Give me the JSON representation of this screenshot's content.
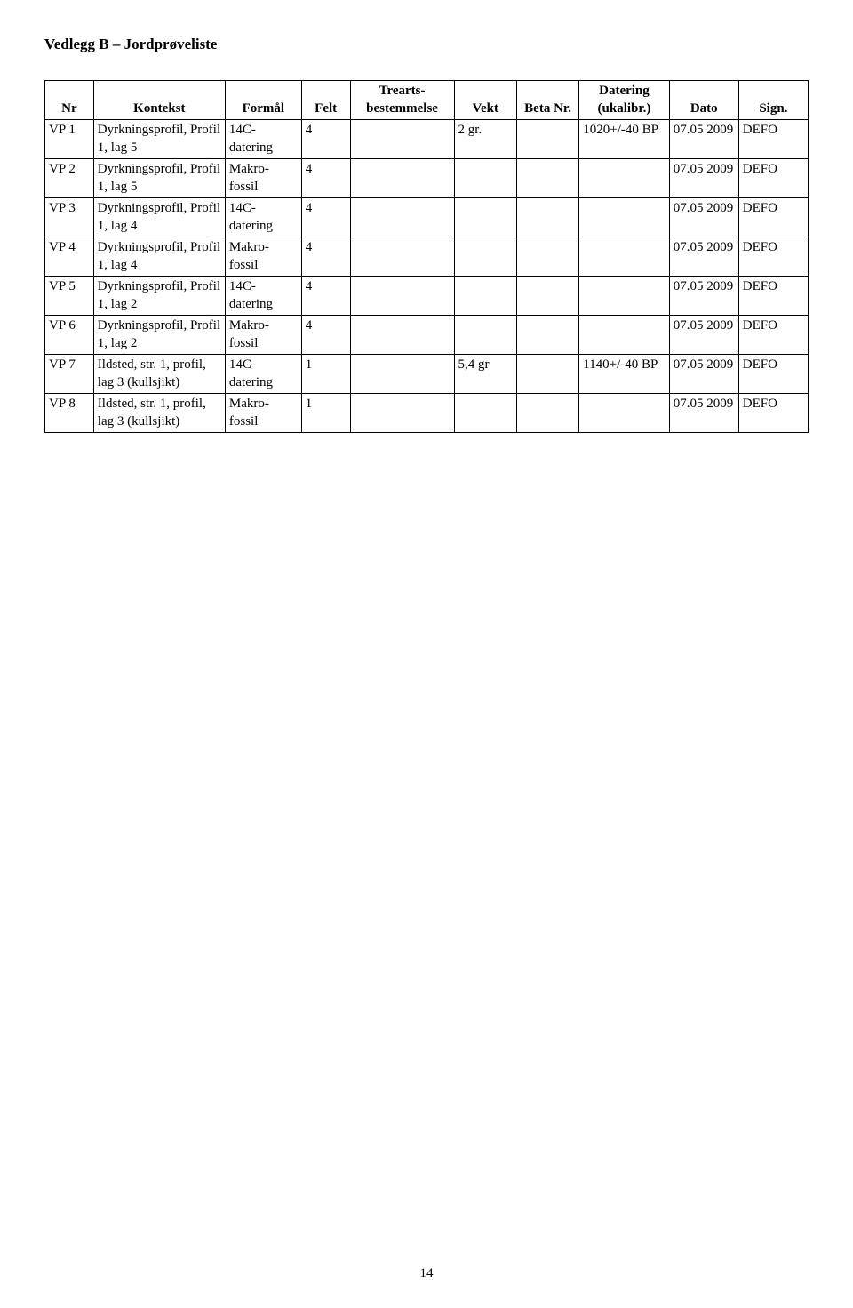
{
  "title": "Vedlegg B – Jordprøveliste",
  "page_number": "14",
  "headers": {
    "nr": "Nr",
    "kontekst": "Kontekst",
    "formal": "Formål",
    "felt": "Felt",
    "trearts": "Trearts-\nbestemmelse",
    "vekt": "Vekt",
    "beta": "Beta\nNr.",
    "datering": "Datering\n(ukalibr.)",
    "dato": "Dato",
    "sign": "Sign."
  },
  "rows": [
    {
      "nr": "VP 1",
      "kontekst": "Dyrkningsprofil, Profil 1, lag 5",
      "formal": "14C-datering",
      "felt": "4",
      "trearts": "",
      "vekt": "2 gr.",
      "beta": "",
      "datering": "1020+/-40 BP",
      "dato": "07.05 2009",
      "sign": "DEFO"
    },
    {
      "nr": "VP 2",
      "kontekst": "Dyrkningsprofil, Profil 1, lag 5",
      "formal": "Makro-fossil",
      "felt": "4",
      "trearts": "",
      "vekt": "",
      "beta": "",
      "datering": "",
      "dato": "07.05 2009",
      "sign": "DEFO"
    },
    {
      "nr": "VP 3",
      "kontekst": "Dyrkningsprofil, Profil 1, lag 4",
      "formal": "14C-datering",
      "felt": "4",
      "trearts": "",
      "vekt": "",
      "beta": "",
      "datering": "",
      "dato": "07.05 2009",
      "sign": "DEFO"
    },
    {
      "nr": "VP 4",
      "kontekst": "Dyrkningsprofil, Profil 1, lag 4",
      "formal": "Makro-fossil",
      "felt": "4",
      "trearts": "",
      "vekt": "",
      "beta": "",
      "datering": "",
      "dato": "07.05 2009",
      "sign": "DEFO"
    },
    {
      "nr": "VP 5",
      "kontekst": "Dyrkningsprofil, Profil 1, lag 2",
      "formal": "14C-datering",
      "felt": "4",
      "trearts": "",
      "vekt": "",
      "beta": "",
      "datering": "",
      "dato": "07.05 2009",
      "sign": "DEFO"
    },
    {
      "nr": "VP 6",
      "kontekst": "Dyrkningsprofil, Profil 1, lag 2",
      "formal": "Makro-fossil",
      "felt": "4",
      "trearts": "",
      "vekt": "",
      "beta": "",
      "datering": "",
      "dato": "07.05 2009",
      "sign": "DEFO"
    },
    {
      "nr": "VP 7",
      "kontekst": "Ildsted, str. 1, profil, lag 3 (kullsjikt)",
      "formal": "14C-datering",
      "felt": "1",
      "trearts": "",
      "vekt": "5,4 gr",
      "beta": "",
      "datering": "1140+/-40 BP",
      "dato": "07.05 2009",
      "sign": "DEFO"
    },
    {
      "nr": "VP 8",
      "kontekst": "Ildsted, str. 1, profil, lag 3 (kullsjikt)",
      "formal": "Makro-fossil",
      "felt": "1",
      "trearts": "",
      "vekt": "",
      "beta": "",
      "datering": "",
      "dato": "07.05 2009",
      "sign": "DEFO"
    }
  ]
}
